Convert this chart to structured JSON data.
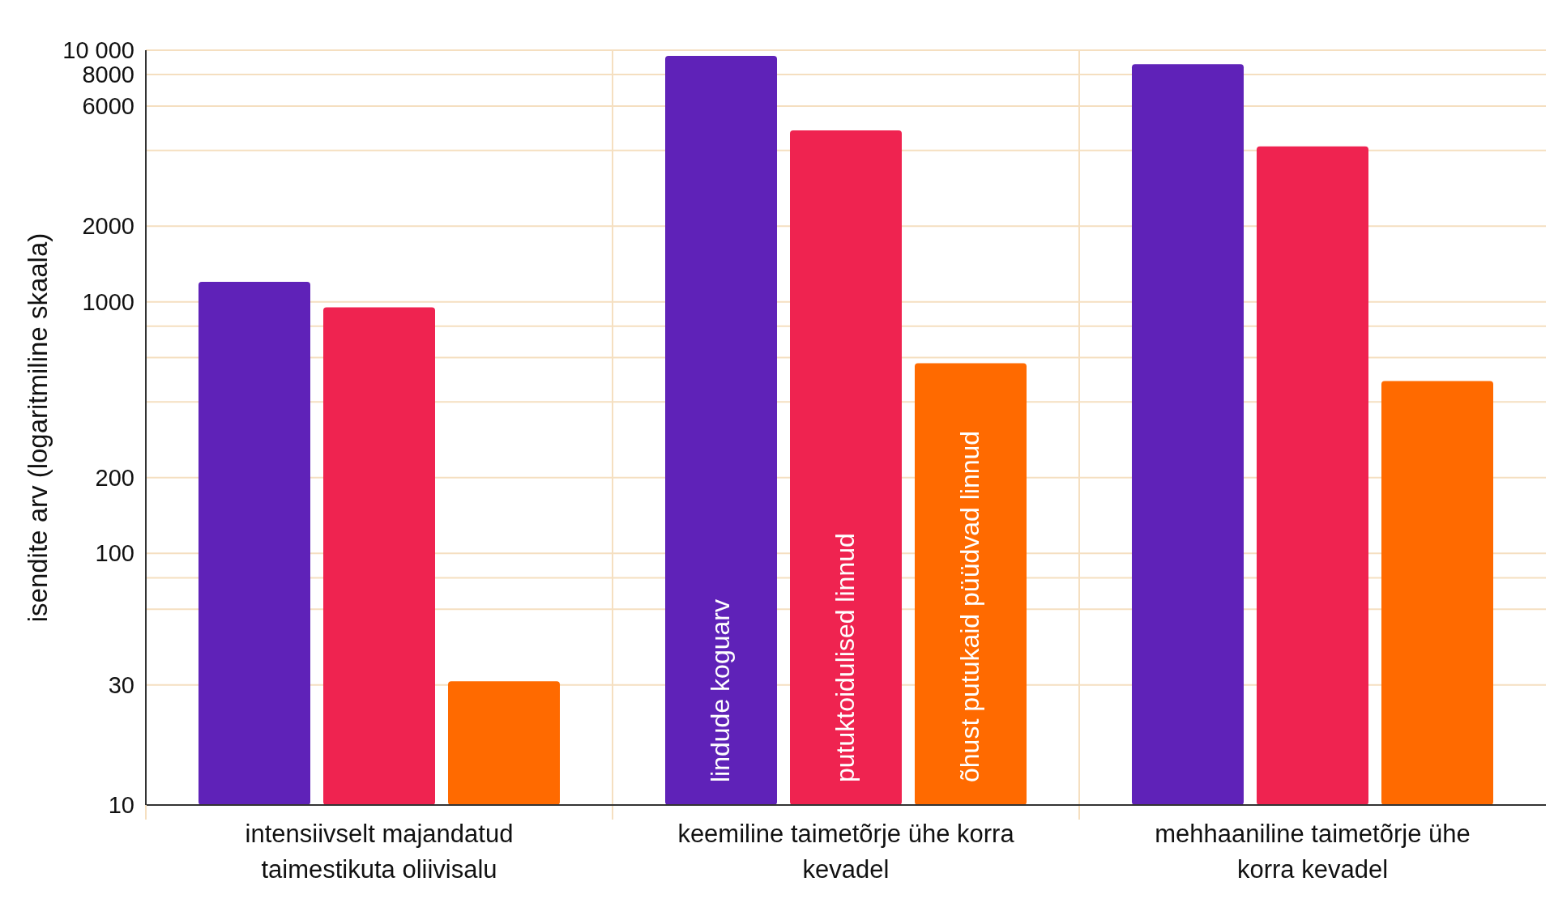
{
  "chart_data": {
    "type": "bar",
    "ylabel": "isendite arv (logaritmiline skaala)",
    "log": "y",
    "grid": true,
    "categories": [
      "intensiivselt majandatud taimestikuta oliivisalu",
      "keemiline taimetõrje ühe korra kevadel",
      "mehhaaniline taimetõrje ühe korra kevadel"
    ],
    "series": [
      {
        "name": "lindude koguarv",
        "color": "#5f22b8",
        "values": [
          1200,
          9500,
          8800
        ]
      },
      {
        "name": "putuktoidulised linnud",
        "color": "#ef2350",
        "values": [
          950,
          4800,
          4150
        ]
      },
      {
        "name": "õhust putukaid püüdvad linnud",
        "color": "#ff6a00",
        "values": [
          31,
          570,
          484
        ]
      }
    ],
    "ylim": [
      10,
      10000
    ],
    "yticks": [
      10,
      30,
      {
        "value": 60,
        "label": null
      },
      {
        "value": 80,
        "label": null
      },
      100,
      200,
      {
        "value": 400,
        "label": null
      },
      {
        "value": 600,
        "label": null
      },
      {
        "value": 800,
        "label": null
      },
      1000,
      2000,
      {
        "value": 4000,
        "label": null
      },
      6000,
      8000,
      {
        "value": 10000,
        "label": "10 000"
      }
    ]
  }
}
